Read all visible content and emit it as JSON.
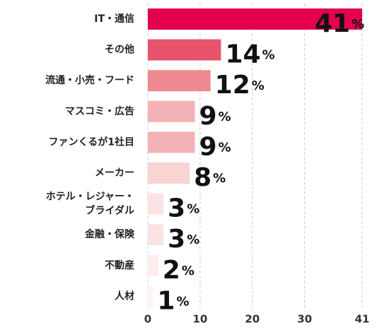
{
  "chart_data": {
    "type": "bar",
    "orientation": "horizontal",
    "categories": [
      "IT・通信",
      "その他",
      "流通・小売・フード",
      "マスコミ・広告",
      "ファンくるが1社目",
      "メーカー",
      "ホテル・レジャー・\nブライダル",
      "金融・保険",
      "不動産",
      "人材"
    ],
    "values": [
      41,
      14,
      12,
      9,
      9,
      8,
      3,
      3,
      2,
      1
    ],
    "unit": "%",
    "colors": [
      "#e4004f",
      "#e8546b",
      "#ee8891",
      "#f3b2b5",
      "#f3b2b5",
      "#f8d4d2",
      "#fbe3e3",
      "#fbe3e3",
      "#fdeded",
      "#fef4f4"
    ],
    "xlim": [
      0,
      41
    ],
    "xticks": [
      0,
      10,
      20,
      30,
      41
    ],
    "grid": true
  }
}
